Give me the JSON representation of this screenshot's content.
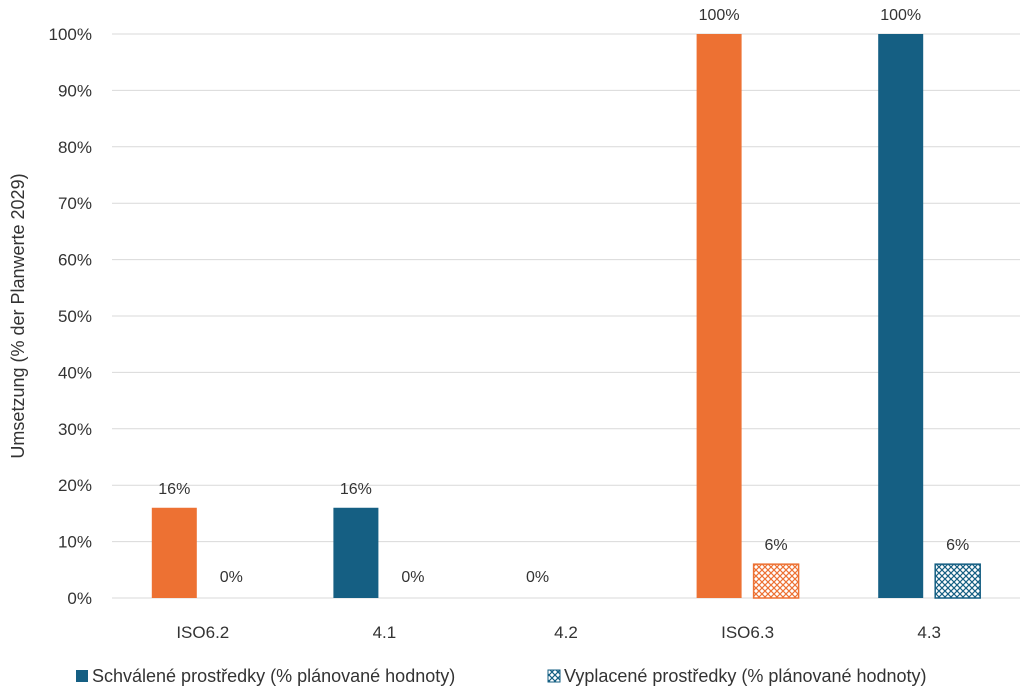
{
  "chart_data": {
    "type": "bar",
    "categories": [
      "ISO6.2",
      "4.1",
      "4.2",
      "ISO6.3",
      "4.3"
    ],
    "ylabel": "Umsetzung (% der Planwerte 2029)",
    "ylim": [
      0,
      100
    ],
    "yticks": [
      "0%",
      "10%",
      "20%",
      "30%",
      "40%",
      "50%",
      "60%",
      "70%",
      "80%",
      "90%",
      "100%"
    ],
    "grid": true,
    "legend_position": "bottom",
    "bars": [
      {
        "category": "ISO6.2",
        "series": "approved",
        "value": 16,
        "label": "16%",
        "color": "#ED7133",
        "pattern": false
      },
      {
        "category": "ISO6.2",
        "series": "paid",
        "value": 0,
        "label": "0%",
        "color": "#ED7133",
        "pattern": true
      },
      {
        "category": "4.1",
        "series": "approved",
        "value": 16,
        "label": "16%",
        "color": "#155F83",
        "pattern": false
      },
      {
        "category": "4.1",
        "series": "paid",
        "value": 0,
        "label": "0%",
        "color": "#155F83",
        "pattern": true
      },
      {
        "category": "4.2",
        "series": "approved",
        "value": 0,
        "label": "0%",
        "color": "#155F83",
        "pattern": false
      },
      {
        "category": "ISO6.3",
        "series": "approved",
        "value": 100,
        "label": "100%",
        "color": "#ED7133",
        "pattern": false
      },
      {
        "category": "ISO6.3",
        "series": "paid",
        "value": 6,
        "label": "6%",
        "color": "#ED7133",
        "pattern": true
      },
      {
        "category": "4.3",
        "series": "approved",
        "value": 100,
        "label": "100%",
        "color": "#155F83",
        "pattern": false
      },
      {
        "category": "4.3",
        "series": "paid",
        "value": 6,
        "label": "6%",
        "color": "#155F83",
        "pattern": true
      }
    ],
    "legend": [
      {
        "key": "approved",
        "name": "Schválené prostředky (% plánované hodnoty)",
        "color": "#155F83",
        "pattern": false
      },
      {
        "key": "paid",
        "name": "Vyplacené prostředky (% plánované hodnoty)",
        "color": "#155F83",
        "pattern": true
      }
    ]
  }
}
